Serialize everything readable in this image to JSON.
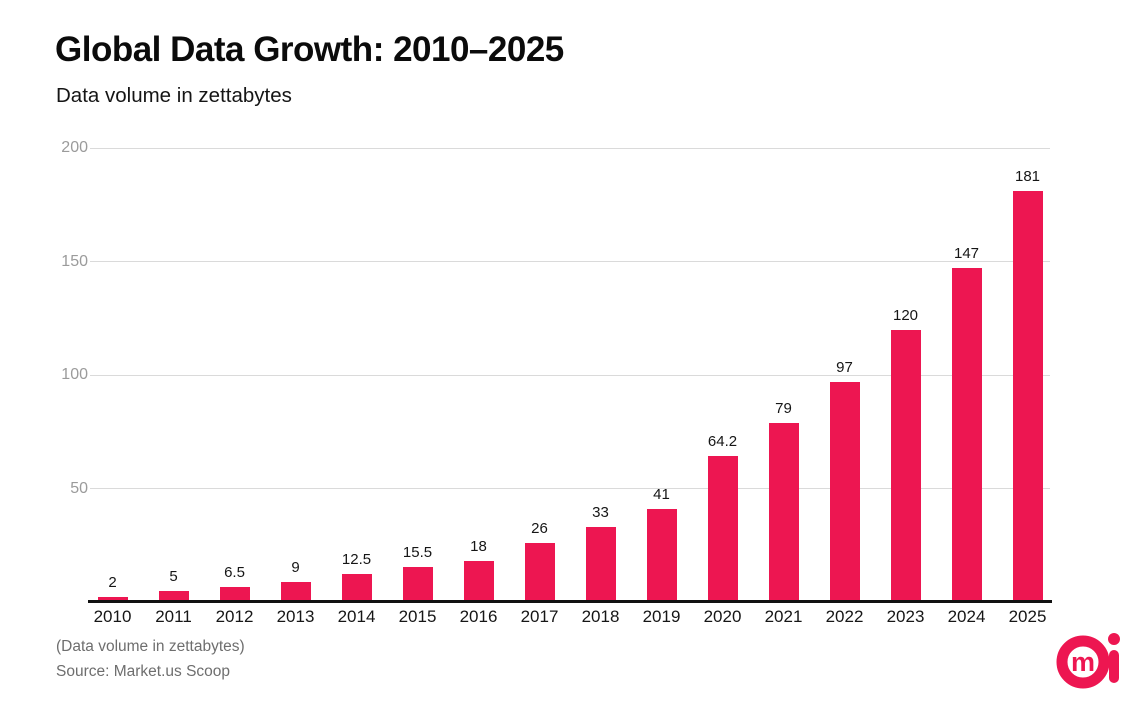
{
  "header": {
    "title": "Global Data Growth: 2010–2025",
    "subtitle": "Data volume in zettabytes"
  },
  "footer": {
    "note": "(Data volume in zettabytes)",
    "source": "Source: Market.us Scoop"
  },
  "logo": {
    "name": "market-us-mi-logo",
    "letters": "mi"
  },
  "colors": {
    "bar": "#ed1651",
    "grid": "#dadada",
    "axis": "#121212",
    "tick_label": "#9b9b9b",
    "value_label": "#161616",
    "footnote": "#6e6e6e",
    "brand": "#ed1651"
  },
  "chart_data": {
    "type": "bar",
    "title": "Global Data Growth: 2010–2025",
    "subtitle": "Data volume in zettabytes",
    "categories": [
      "2010",
      "2011",
      "2012",
      "2013",
      "2014",
      "2015",
      "2016",
      "2017",
      "2018",
      "2019",
      "2020",
      "2021",
      "2022",
      "2023",
      "2024",
      "2025"
    ],
    "values": [
      2,
      5,
      6.5,
      9,
      12.5,
      15.5,
      18,
      26,
      33,
      41,
      64.2,
      79,
      97,
      120,
      147,
      181
    ],
    "xlabel": "",
    "ylabel": "",
    "ylim": [
      0,
      200
    ],
    "y_ticks": [
      50,
      100,
      150,
      200
    ],
    "grid": "horizontal",
    "legend": "none",
    "value_labels": true
  }
}
